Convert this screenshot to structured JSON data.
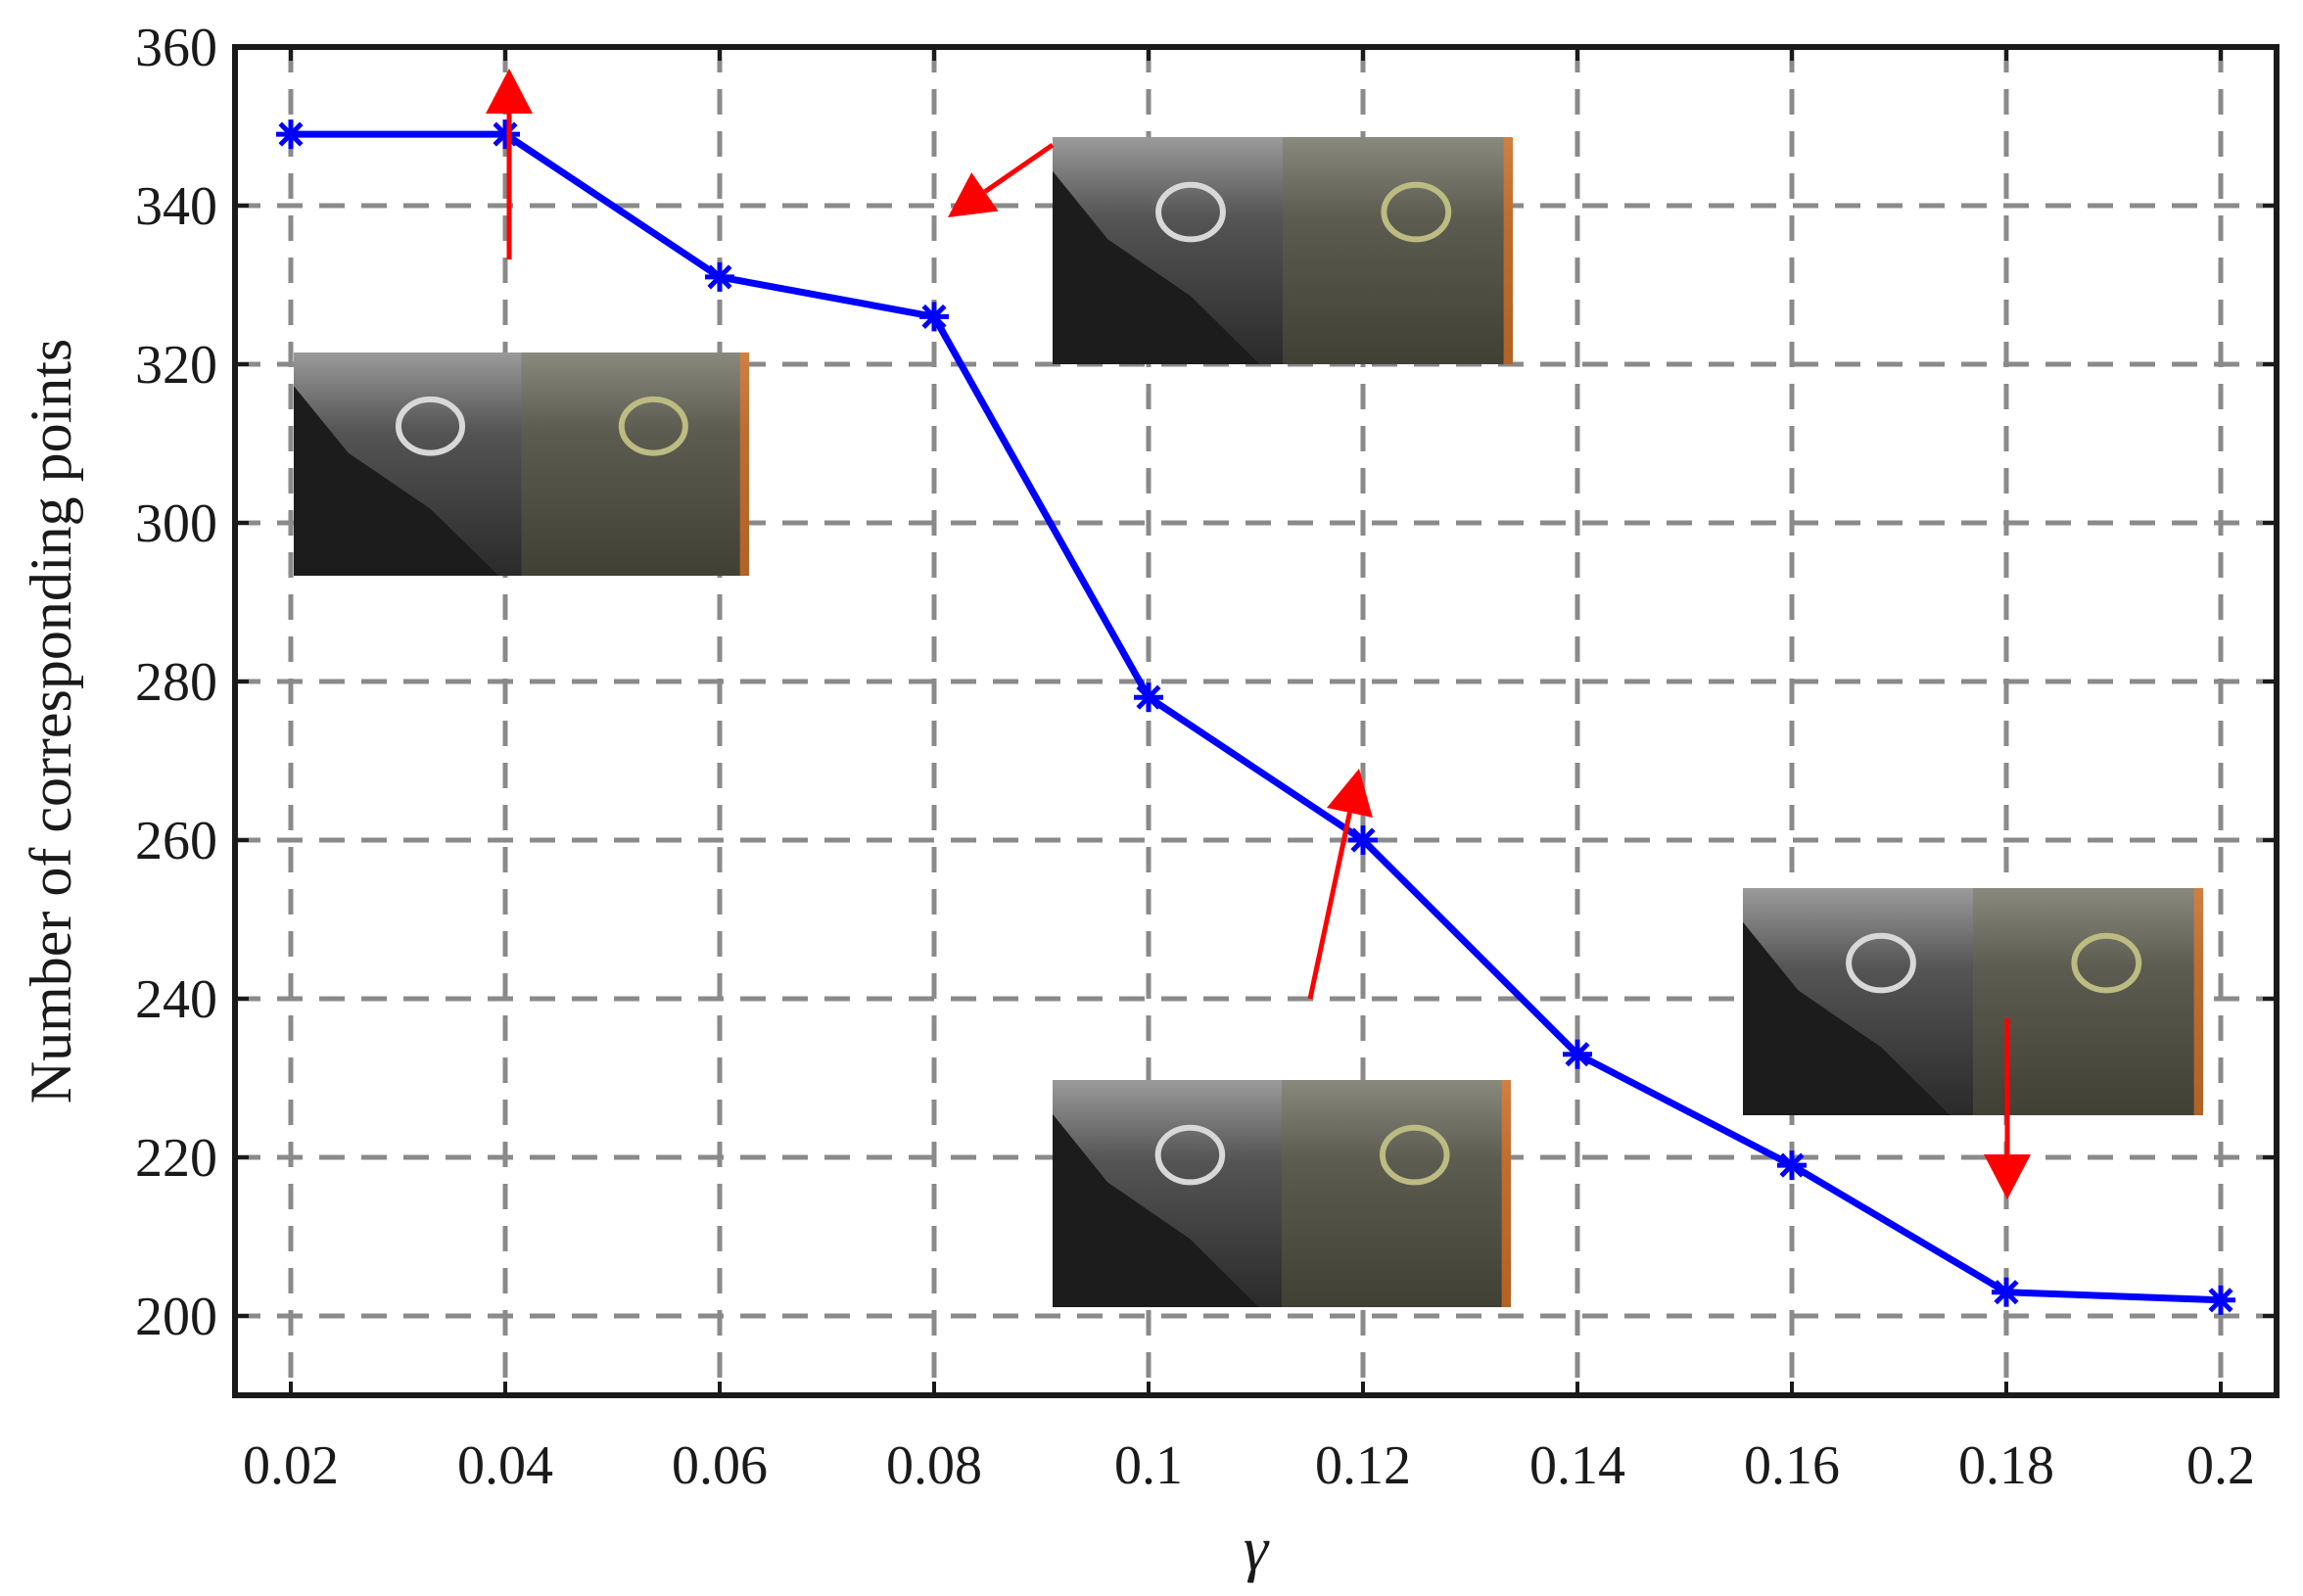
{
  "chart_data": {
    "type": "line",
    "title": "",
    "xlabel": "γ",
    "ylabel": "Number of corresponding points",
    "x": [
      0.02,
      0.04,
      0.06,
      0.08,
      0.1,
      0.12,
      0.14,
      0.16,
      0.18,
      0.2
    ],
    "x_tick_labels": [
      "0.02",
      "0.04",
      "0.06",
      "0.08",
      "0.1",
      "0.12",
      "0.14",
      "0.16",
      "0.18",
      "0.2"
    ],
    "series": [
      {
        "values": [
          349,
          349,
          331,
          326,
          278,
          260,
          233,
          219,
          203,
          202
        ],
        "color": "#0000ff",
        "marker": "asterisk"
      }
    ],
    "ylim": [
      190,
      360
    ],
    "y_ticks": [
      200,
      220,
      240,
      260,
      280,
      300,
      320,
      340,
      360
    ],
    "grid": true,
    "annotation_color": "#ff0000",
    "insets": [
      {
        "description": "feature-matching image",
        "x": 0.04,
        "y": 349
      },
      {
        "description": "feature-matching image",
        "x": 0.08,
        "y": 326
      },
      {
        "description": "feature-matching image",
        "x": 0.12,
        "y": 260
      },
      {
        "description": "feature-matching image",
        "x": 0.18,
        "y": 203
      }
    ]
  }
}
